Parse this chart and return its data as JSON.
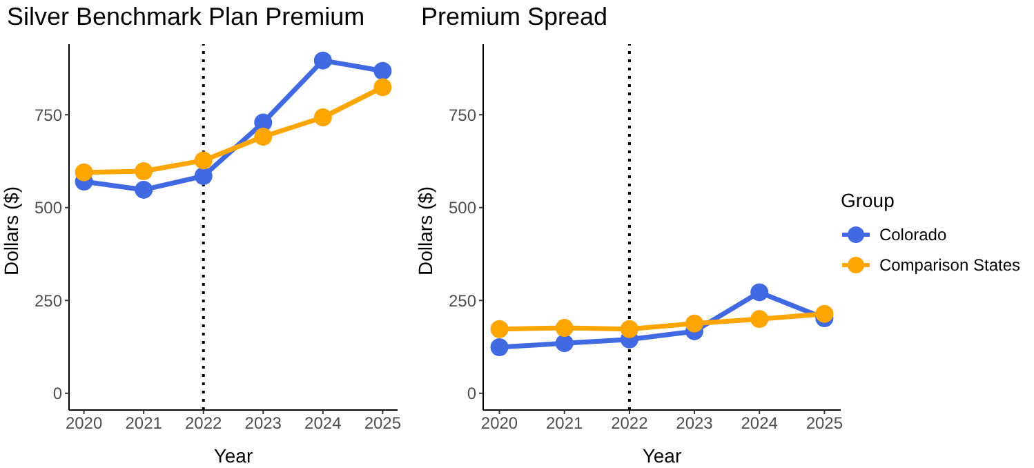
{
  "chart_data": [
    {
      "type": "line",
      "title": "Silver Benchmark Plan Premium",
      "xlabel": "Year",
      "ylabel": "Dollars ($)",
      "x": [
        2020,
        2021,
        2022,
        2023,
        2024,
        2025
      ],
      "xlim": [
        2019.75,
        2025.25
      ],
      "xticks": [
        2020,
        2021,
        2022,
        2023,
        2024,
        2025
      ],
      "ylim": [
        -45,
        940
      ],
      "yticks": [
        0,
        250,
        500,
        750
      ],
      "grid": false,
      "legend": false,
      "marker": "circle",
      "line_style": "solid",
      "ref_lines": [
        {
          "axis": "x",
          "value": 2022,
          "color": "#000000",
          "line_style": "dotted"
        }
      ],
      "series": [
        {
          "color": "#4169e1",
          "values": [
            570,
            548,
            585,
            729,
            896,
            868
          ]
        },
        {
          "color": "#ffa500",
          "values": [
            595,
            598,
            627,
            691,
            743,
            824
          ]
        }
      ]
    },
    {
      "type": "line",
      "title": "Premium Spread",
      "xlabel": "Year",
      "ylabel": "Dollars ($)",
      "legend_title": "Group",
      "x": [
        2020,
        2021,
        2022,
        2023,
        2024,
        2025
      ],
      "xlim": [
        2019.75,
        2025.25
      ],
      "xticks": [
        2020,
        2021,
        2022,
        2023,
        2024,
        2025
      ],
      "ylim": [
        -45,
        940
      ],
      "yticks": [
        0,
        250,
        500,
        750
      ],
      "grid": false,
      "legend": "right",
      "marker": "circle",
      "line_style": "solid",
      "ref_lines": [
        {
          "axis": "x",
          "value": 2022,
          "color": "#000000",
          "line_style": "dotted"
        }
      ],
      "series": [
        {
          "name": "Colorado",
          "color": "#4169e1",
          "values": [
            124,
            135,
            145,
            167,
            272,
            202
          ]
        },
        {
          "name": "Comparison States",
          "color": "#ffa500",
          "values": [
            173,
            176,
            173,
            188,
            200,
            214
          ]
        }
      ]
    }
  ]
}
